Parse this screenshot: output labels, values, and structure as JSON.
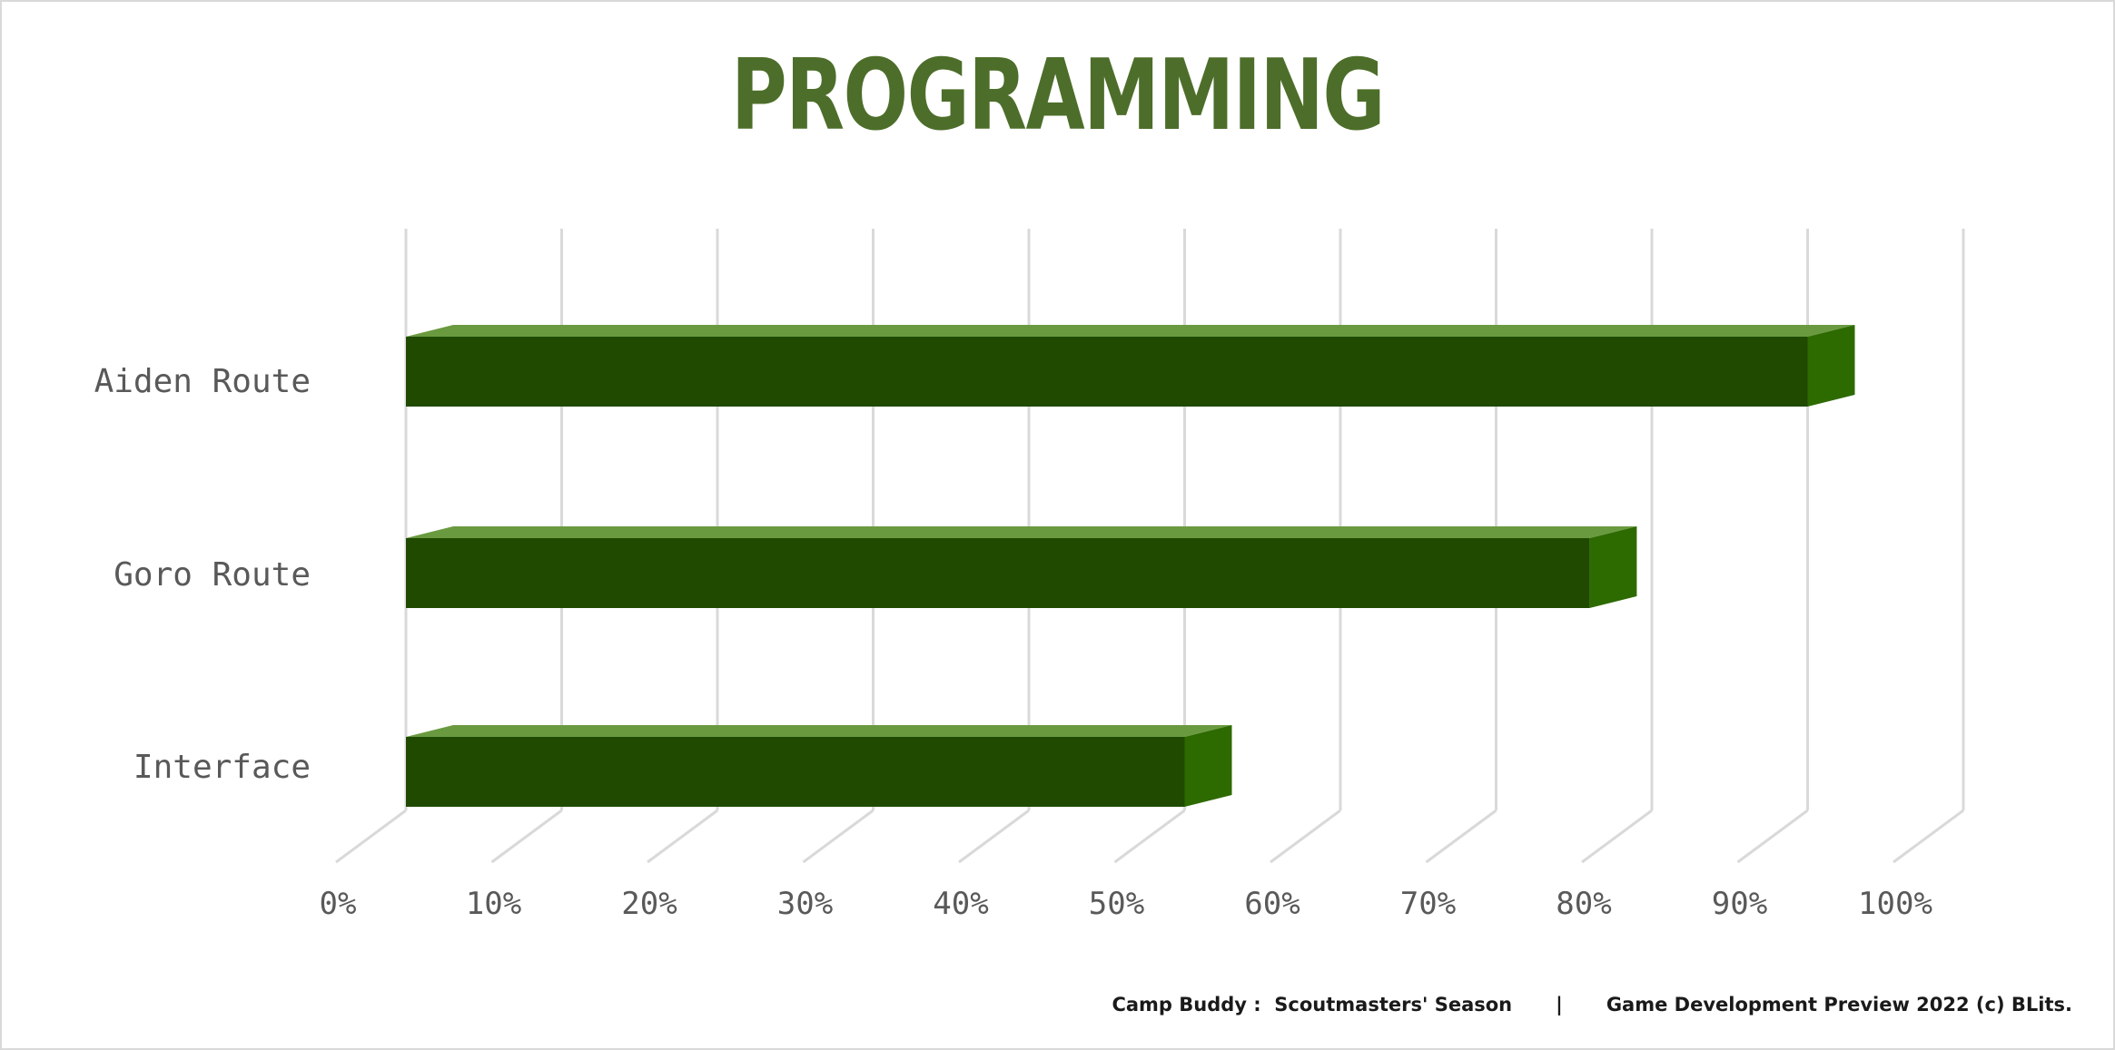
{
  "colors": {
    "title": "#4d6e2a",
    "bar_front": "#1f4a00",
    "bar_top": "#6a9a40",
    "bar_side": "#2d6a00",
    "grid": "#d9d9d9",
    "text": "#595959"
  },
  "chart_data": {
    "type": "bar",
    "orientation": "horizontal",
    "style": "3d-clustered",
    "title": "PROGRAMMING",
    "categories": [
      "Aiden Route",
      "Goro Route",
      "Interface"
    ],
    "values": [
      0.9,
      0.76,
      0.5
    ],
    "xlim": [
      0,
      1
    ],
    "x_ticks": [
      "0%",
      "10%",
      "20%",
      "30%",
      "40%",
      "50%",
      "60%",
      "70%",
      "80%",
      "90%",
      "100%"
    ],
    "grid": true,
    "legend": "none"
  },
  "footer": {
    "game": "Camp Buddy :  Scoutmasters' Season",
    "separator": "|",
    "credit": "Game Development Preview 2022 (c) BLits."
  }
}
